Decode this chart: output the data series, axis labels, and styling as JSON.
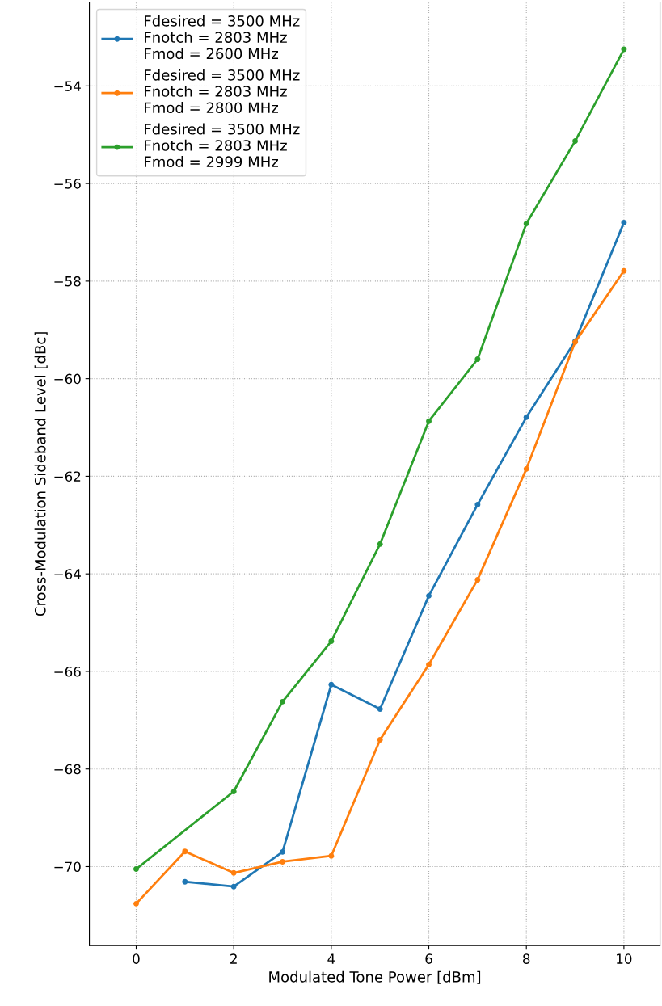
{
  "chart_data": {
    "type": "line",
    "xlabel": "Modulated Tone Power [dBm]",
    "ylabel": "Cross-Modulation Sideband Level [dBc]",
    "x": [
      0,
      1,
      2,
      3,
      4,
      5,
      6,
      7,
      8,
      9,
      10
    ],
    "series": [
      {
        "name": "Fdesired = 3500 MHz\nFnotch = 2803 MHz\nFmod = 2600 MHz",
        "color": "#1f77b4",
        "values": [
          null,
          -70.31,
          -70.41,
          -69.7,
          -66.27,
          -66.77,
          -64.45,
          -62.58,
          -60.79,
          -59.23,
          -56.8
        ]
      },
      {
        "name": "Fdesired = 3500 MHz\nFnotch = 2803 MHz\nFmod = 2800 MHz",
        "color": "#ff7f0e",
        "values": [
          -70.76,
          -69.69,
          -70.13,
          -69.9,
          -69.78,
          -67.4,
          -65.86,
          -64.12,
          -61.85,
          -59.25,
          -57.79
        ]
      },
      {
        "name": "Fdesired = 3500 MHz\nFnotch = 2803 MHz\nFmod = 2999 MHz",
        "color": "#2ca02c",
        "x": [
          0,
          2,
          3,
          4,
          5,
          6,
          7,
          8,
          9,
          10
        ],
        "values": [
          -70.05,
          -68.46,
          -66.62,
          -65.38,
          -63.39,
          -60.87,
          -59.6,
          -56.82,
          -55.13,
          -53.25
        ]
      }
    ],
    "xlim": [
      -0.96,
      10.74
    ],
    "ylim": [
      -71.62,
      -52.28
    ],
    "xticks": [
      0,
      2,
      4,
      6,
      8,
      10
    ],
    "yticks": [
      {
        "value": -70,
        "label": "−70"
      },
      {
        "value": -68,
        "label": "−68"
      },
      {
        "value": -66,
        "label": "−66"
      },
      {
        "value": -64,
        "label": "−64"
      },
      {
        "value": -62,
        "label": "−62"
      },
      {
        "value": -60,
        "label": "−60"
      },
      {
        "value": -58,
        "label": "−58"
      },
      {
        "value": -56,
        "label": "−56"
      },
      {
        "value": -54,
        "label": "−54"
      }
    ],
    "grid": true,
    "legend": "top left",
    "marker": "circle",
    "line_style": "solid"
  }
}
